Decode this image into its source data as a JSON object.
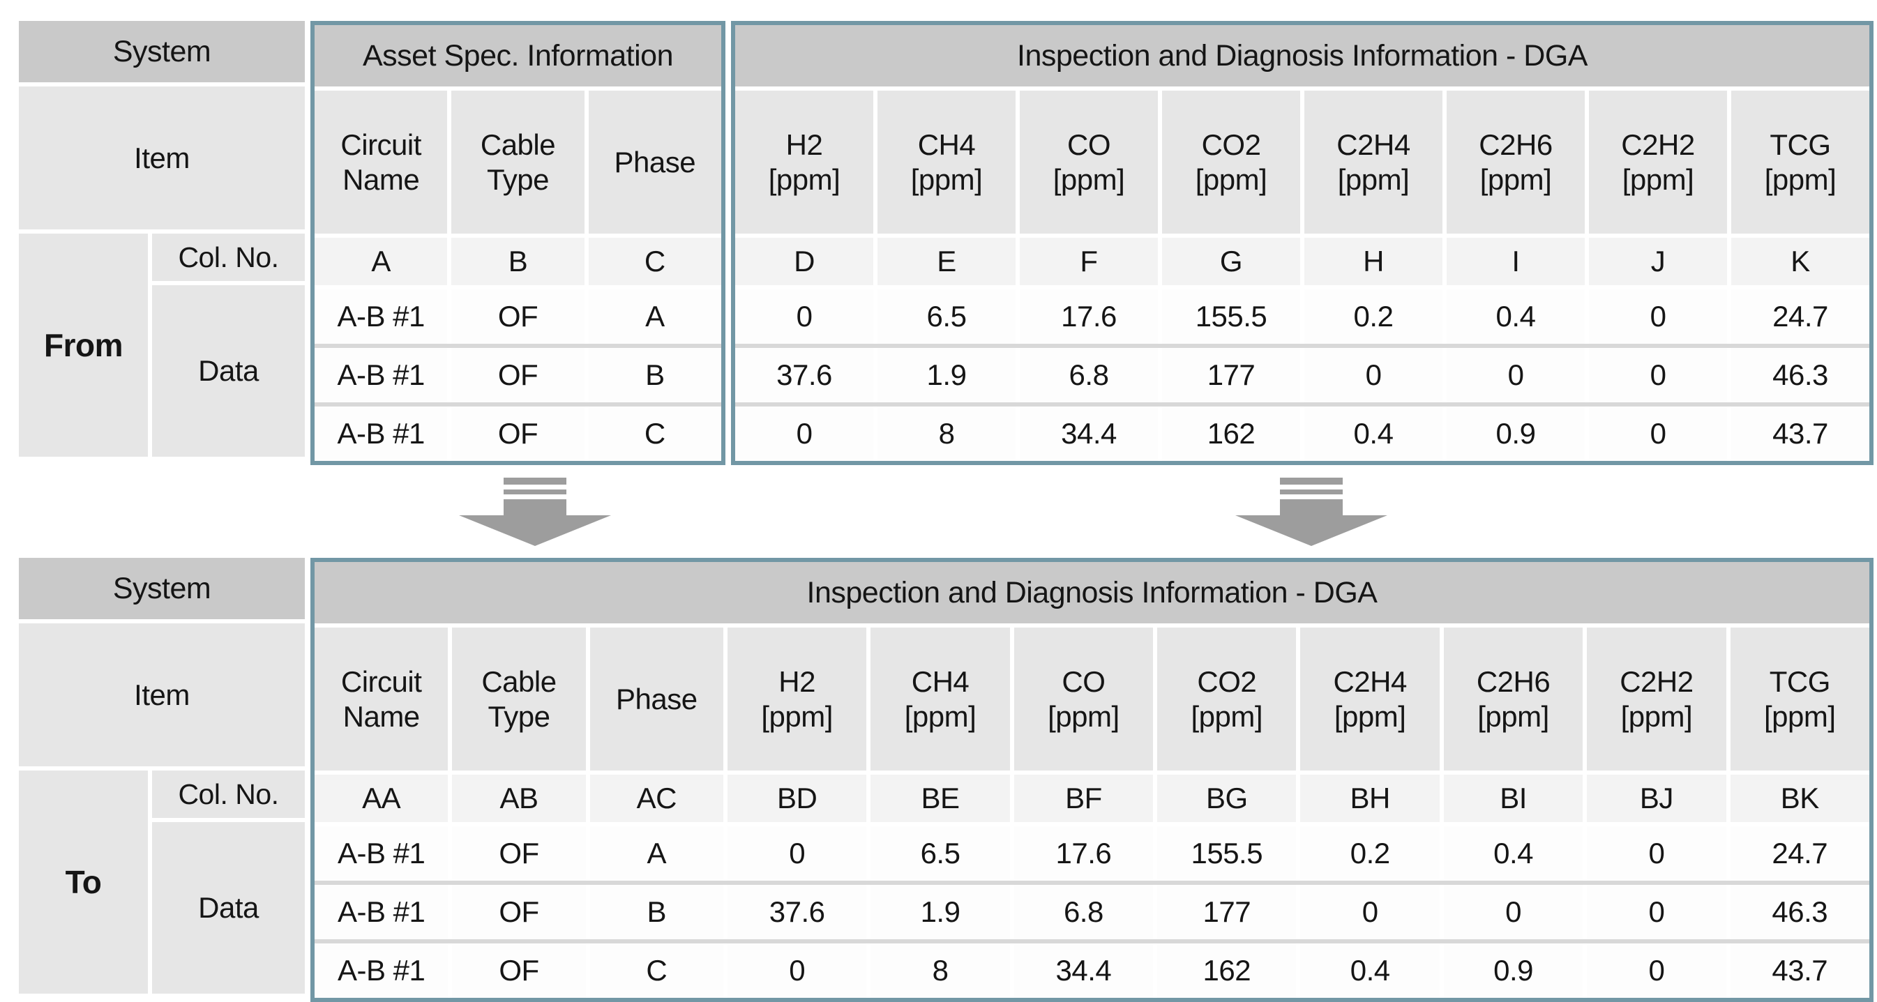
{
  "colors": {
    "section_border": "#7297a5",
    "header_bg": "#c9c9c9",
    "label_cell_bg": "#e6e6e6",
    "col_letter_bg": "#f3f3f3",
    "data_cell_bg": "#fdfdfd",
    "row_separator": "#d8d8d8",
    "arrow_fill": "#9d9d9d"
  },
  "icons": {
    "flow_arrow": "down-arrow"
  },
  "tables": [
    {
      "id": "from",
      "system_label": "System",
      "item_label": "Item",
      "col_no_label": "Col. No.",
      "data_label": "Data",
      "direction_label": "From",
      "sections": [
        {
          "title": "Asset Spec. Information",
          "col_start": 0,
          "col_count": 3
        },
        {
          "title": "Inspection and Diagnosis Information - DGA",
          "col_start": 3,
          "col_count": 8
        }
      ],
      "columns": [
        "Circuit\nName",
        "Cable\nType",
        "Phase",
        "H2\n[ppm]",
        "CH4\n[ppm]",
        "CO\n[ppm]",
        "CO2\n[ppm]",
        "C2H4\n[ppm]",
        "C2H6\n[ppm]",
        "C2H2\n[ppm]",
        "TCG\n[ppm]"
      ],
      "col_letters": [
        "A",
        "B",
        "C",
        "D",
        "E",
        "F",
        "G",
        "H",
        "I",
        "J",
        "K"
      ],
      "rows": [
        [
          "A-B #1",
          "OF",
          "A",
          "0",
          "6.5",
          "17.6",
          "155.5",
          "0.2",
          "0.4",
          "0",
          "24.7"
        ],
        [
          "A-B #1",
          "OF",
          "B",
          "37.6",
          "1.9",
          "6.8",
          "177",
          "0",
          "0",
          "0",
          "46.3"
        ],
        [
          "A-B #1",
          "OF",
          "C",
          "0",
          "8",
          "34.4",
          "162",
          "0.4",
          "0.9",
          "0",
          "43.7"
        ]
      ]
    },
    {
      "id": "to",
      "system_label": "System",
      "item_label": "Item",
      "col_no_label": "Col. No.",
      "data_label": "Data",
      "direction_label": "To",
      "sections": [
        {
          "title": "Inspection and Diagnosis Information - DGA",
          "col_start": 0,
          "col_count": 11
        }
      ],
      "columns": [
        "Circuit\nName",
        "Cable\nType",
        "Phase",
        "H2\n[ppm]",
        "CH4\n[ppm]",
        "CO\n[ppm]",
        "CO2\n[ppm]",
        "C2H4\n[ppm]",
        "C2H6\n[ppm]",
        "C2H2\n[ppm]",
        "TCG\n[ppm]"
      ],
      "col_letters": [
        "AA",
        "AB",
        "AC",
        "BD",
        "BE",
        "BF",
        "BG",
        "BH",
        "BI",
        "BJ",
        "BK"
      ],
      "rows": [
        [
          "A-B #1",
          "OF",
          "A",
          "0",
          "6.5",
          "17.6",
          "155.5",
          "0.2",
          "0.4",
          "0",
          "24.7"
        ],
        [
          "A-B #1",
          "OF",
          "B",
          "37.6",
          "1.9",
          "6.8",
          "177",
          "0",
          "0",
          "0",
          "46.3"
        ],
        [
          "A-B #1",
          "OF",
          "C",
          "0",
          "8",
          "34.4",
          "162",
          "0.4",
          "0.9",
          "0",
          "43.7"
        ]
      ]
    }
  ]
}
